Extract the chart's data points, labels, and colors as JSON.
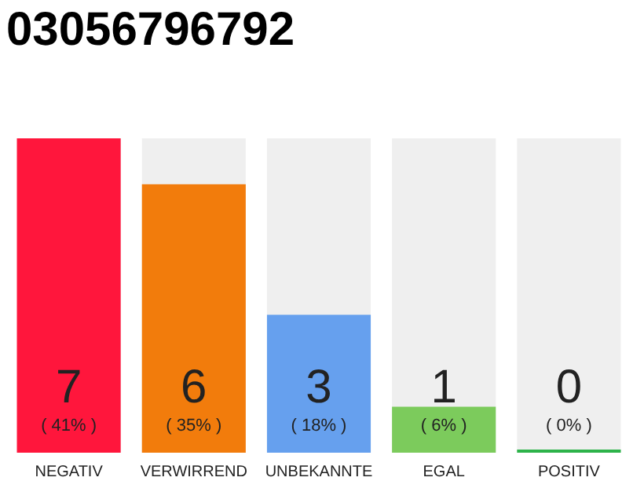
{
  "chart_data": {
    "type": "bar",
    "title": "03056796792",
    "categories": [
      "NEGATIV",
      "VERWIRREND",
      "UNBEKANNTE",
      "EGAL",
      "POSITIV"
    ],
    "values": [
      41,
      35,
      18,
      6,
      0
    ],
    "value_labels": [
      "( 41% )",
      "( 35% )",
      "( 18% )",
      "( 6% )",
      "( 0% )"
    ],
    "colors": [
      "#ff163c",
      "#f27c0c",
      "#66a0ee",
      "#7ccb5c",
      "#2db34a"
    ],
    "annotations": [
      "7",
      "6",
      "3",
      "1",
      "0"
    ],
    "grid": false,
    "legend": false
  }
}
